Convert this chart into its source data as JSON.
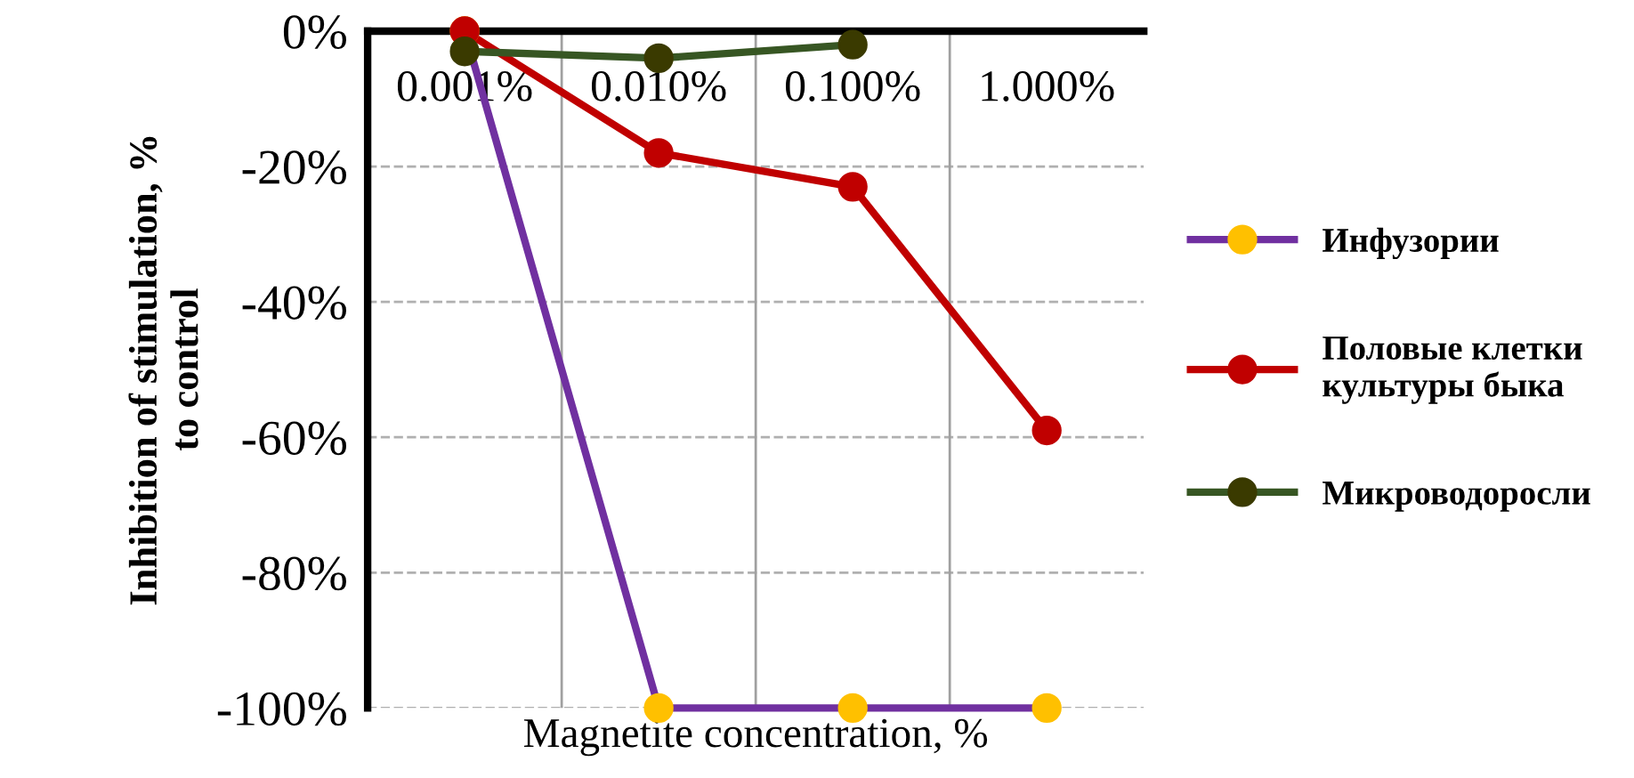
{
  "chart_data": {
    "type": "line",
    "xlabel": "Magnetite concentration, %",
    "ylabel": "Inhibition of stimulation, %\nto control",
    "categories": [
      "0.001%",
      "0.010%",
      "0.100%",
      "1.000%"
    ],
    "series": [
      {
        "name": "Инфузории",
        "color": "#7030a0",
        "colors": [
          "#ffc000",
          "#ffc000",
          "#ffc000",
          "#ffc000"
        ],
        "values": [
          0,
          -100,
          -100,
          -100
        ]
      },
      {
        "name": "Половые клетки\nкультуры быка",
        "color": "#c00000",
        "colors": [
          "#c00000",
          "#c00000",
          "#c00000",
          "#c00000"
        ],
        "values": [
          0,
          -18,
          -23,
          -59
        ]
      },
      {
        "name": "Микроводоросли",
        "color": "#375623",
        "colors": [
          "#3a3a00",
          "#3a3a00",
          "#3a3a00",
          "#3a3a00"
        ],
        "values": [
          -3,
          -4,
          -2,
          null
        ]
      }
    ],
    "ylim": [
      -100,
      0
    ],
    "yticks": [
      {
        "value": 0,
        "label": "0%"
      },
      {
        "value": -20,
        "label": "-20%"
      },
      {
        "value": -40,
        "label": "-40%"
      },
      {
        "value": -60,
        "label": "-60%"
      },
      {
        "value": -80,
        "label": "-80%"
      },
      {
        "value": -100,
        "label": "-100%"
      }
    ],
    "grid": true,
    "legend": "right",
    "marker": "circle",
    "line_style": "solid"
  }
}
